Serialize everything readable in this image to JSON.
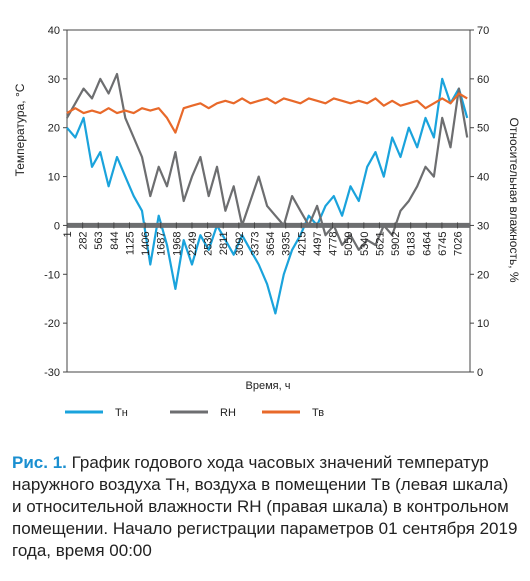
{
  "chart_data": {
    "type": "line",
    "y_label": "Температура, °С",
    "y2_label": "Относительная влажность, %",
    "x_label": "Время, ч",
    "xlim": [
      1,
      7250
    ],
    "xticks": [
      1,
      282,
      563,
      844,
      1125,
      1406,
      1687,
      1968,
      2249,
      2530,
      2811,
      3092,
      3373,
      3654,
      3935,
      4215,
      4497,
      4778,
      5059,
      5340,
      5621,
      5902,
      6183,
      6464,
      6745,
      7026
    ],
    "ylim": [
      -30,
      40
    ],
    "yticks": [
      -30,
      -20,
      -10,
      0,
      10,
      20,
      30,
      40
    ],
    "y2lim": [
      0,
      70
    ],
    "y2ticks": [
      0,
      10,
      20,
      30,
      40,
      50,
      60,
      70
    ],
    "x": [
      0,
      150,
      300,
      450,
      600,
      750,
      900,
      1050,
      1200,
      1350,
      1500,
      1650,
      1800,
      1950,
      2100,
      2250,
      2400,
      2550,
      2700,
      2850,
      3000,
      3150,
      3300,
      3450,
      3600,
      3750,
      3900,
      4050,
      4200,
      4350,
      4500,
      4650,
      4800,
      4950,
      5100,
      5250,
      5400,
      5550,
      5700,
      5850,
      6000,
      6150,
      6300,
      6450,
      6600,
      6750,
      6900,
      7050,
      7200
    ],
    "series": [
      {
        "name": "Тн",
        "color": "#1aa3dc",
        "values": [
          20,
          18,
          22,
          12,
          15,
          8,
          14,
          10,
          6,
          3,
          -8,
          2,
          -4,
          -13,
          -3,
          -8,
          -2,
          -5,
          0,
          -3,
          -6,
          -2,
          -5,
          -8,
          -12,
          -18,
          -10,
          -5,
          -2,
          2,
          0,
          4,
          6,
          2,
          8,
          5,
          12,
          15,
          10,
          18,
          14,
          20,
          16,
          22,
          18,
          30,
          25,
          28,
          22
        ]
      },
      {
        "name": "RH",
        "color": "#6d6e70",
        "axis": "y2",
        "values": [
          52,
          55,
          58,
          56,
          60,
          57,
          61,
          52,
          48,
          44,
          36,
          42,
          38,
          45,
          35,
          40,
          44,
          36,
          42,
          33,
          38,
          30,
          35,
          40,
          34,
          32,
          30,
          36,
          33,
          30,
          34,
          28,
          30,
          26,
          28,
          25,
          27,
          26,
          30,
          28,
          33,
          35,
          38,
          42,
          40,
          52,
          46,
          58,
          48
        ]
      },
      {
        "name": "Тв",
        "color": "#e8692a",
        "values": [
          23,
          24,
          23,
          23.5,
          23,
          24,
          23,
          23.5,
          23,
          24,
          23.5,
          24,
          22,
          19,
          24,
          24.5,
          25,
          24,
          25,
          25.5,
          25,
          26,
          25,
          25.5,
          26,
          25,
          26,
          25.5,
          25,
          26,
          25.5,
          25,
          26,
          25.5,
          25,
          25.5,
          25,
          26,
          24.5,
          25.5,
          24.5,
          25,
          25.5,
          24,
          25,
          26,
          25,
          27,
          26
        ]
      }
    ]
  },
  "caption": {
    "label": "Рис. 1.",
    "text": "График годового хода часовых значений температур наружного воздуха Tн, воздуха в помещении Tв (левая шкала) и относительной влажности RH (правая шкала) в контрольном помещении. Начало регистрации параметров 01 сентября 2019 года, время 00:00"
  }
}
